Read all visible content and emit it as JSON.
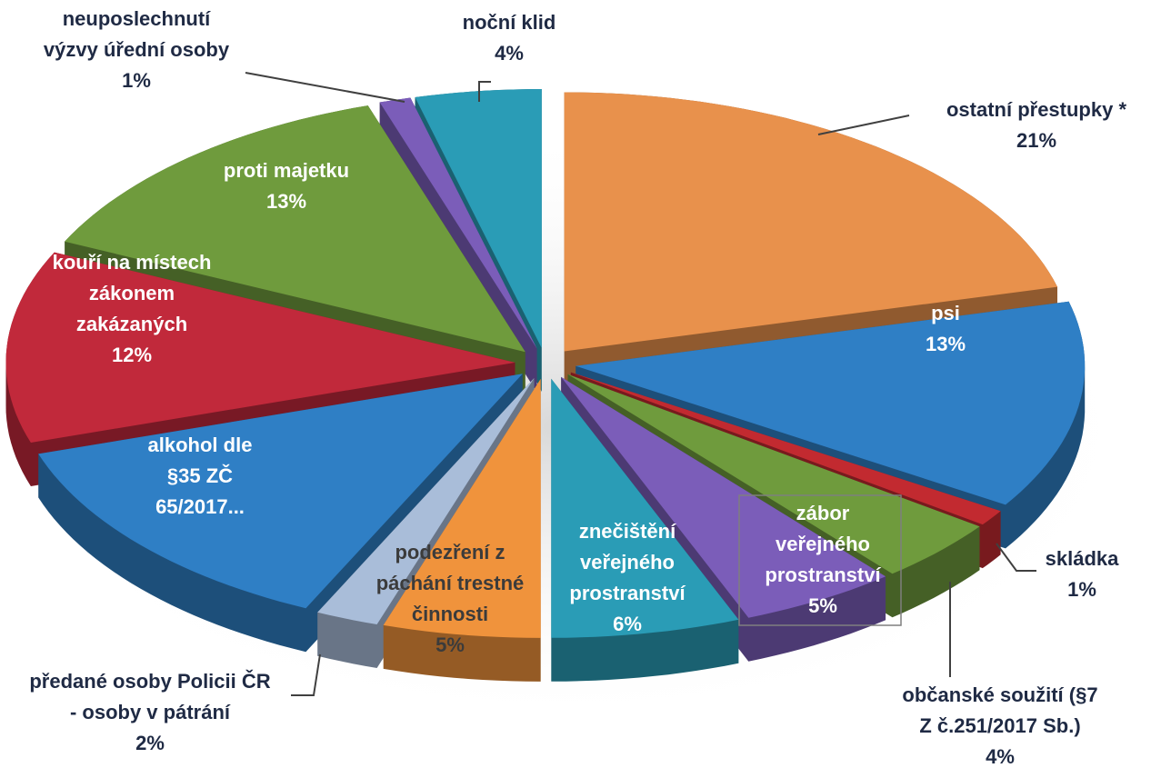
{
  "chart_data": {
    "type": "pie3d",
    "categories": [
      "ostatní přestupky *",
      "psi",
      "skládka",
      "občanské soužití (§7\nZ č.251/2017 Sb.)",
      "zábor\nveřejného\nprostranství",
      "znečištění\nveřejného\nprostranství",
      "podezření z\npáchání trestné\nčinnosti",
      "předané osoby Policii ČR\n- osoby v pátrání",
      "alkohol dle\n§35 ZČ\n65/2017...",
      "kouří na místech\nzákonem\nzakázaných",
      "proti majetku",
      "neuposlechnutí\nvýzvy úřední osoby",
      "noční klid"
    ],
    "values": [
      21,
      13,
      1,
      4,
      5,
      6,
      5,
      2,
      13,
      12,
      13,
      1,
      4
    ],
    "value_labels": [
      "21%",
      "13%",
      "1%",
      "4%",
      "5%",
      "6%",
      "5%",
      "2%",
      null,
      "12%",
      "13%",
      "1%",
      "4%"
    ],
    "colors": [
      "#e8914c",
      "#2f7fc5",
      "#c22a30",
      "#6f9b3d",
      "#7b5db9",
      "#2a9cb6",
      "#f0933c",
      "#a9bdd9",
      "#2f7fc5",
      "#c1293b",
      "#6f9b3d",
      "#7b5db9",
      "#2a9cb6"
    ]
  }
}
